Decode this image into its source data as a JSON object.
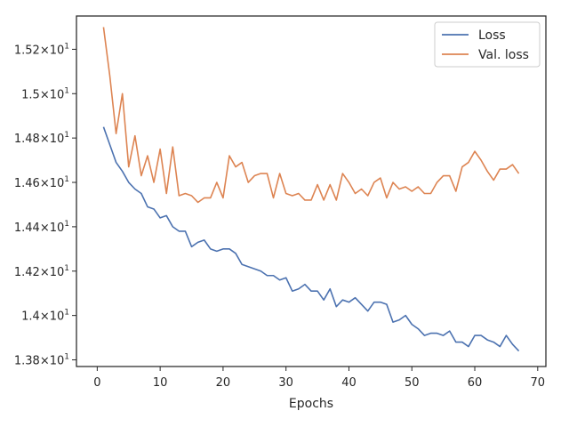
{
  "chart_data": {
    "type": "line",
    "title": "",
    "xlabel": "Epochs",
    "ylabel": "",
    "xlim": [
      -3.3,
      71.3
    ],
    "ylim": [
      13.77,
      15.35
    ],
    "grid": false,
    "legend_position": "top-right",
    "x_ticks": [
      {
        "value": 0,
        "label": "0"
      },
      {
        "value": 10,
        "label": "10"
      },
      {
        "value": 20,
        "label": "20"
      },
      {
        "value": 30,
        "label": "30"
      },
      {
        "value": 40,
        "label": "40"
      },
      {
        "value": 50,
        "label": "50"
      },
      {
        "value": 60,
        "label": "60"
      },
      {
        "value": 70,
        "label": "70"
      }
    ],
    "y_ticks": [
      {
        "value": 13.8,
        "mantissa": "1.38",
        "exponent": "1"
      },
      {
        "value": 14.0,
        "mantissa": "1.4",
        "exponent": "1"
      },
      {
        "value": 14.2,
        "mantissa": "1.42",
        "exponent": "1"
      },
      {
        "value": 14.4,
        "mantissa": "1.44",
        "exponent": "1"
      },
      {
        "value": 14.6,
        "mantissa": "1.46",
        "exponent": "1"
      },
      {
        "value": 14.8,
        "mantissa": "1.48",
        "exponent": "1"
      },
      {
        "value": 15.0,
        "mantissa": "1.5",
        "exponent": "1"
      },
      {
        "value": 15.2,
        "mantissa": "1.52",
        "exponent": "1"
      }
    ],
    "x": [
      1,
      2,
      3,
      4,
      5,
      6,
      7,
      8,
      9,
      10,
      11,
      12,
      13,
      14,
      15,
      16,
      17,
      18,
      19,
      20,
      21,
      22,
      23,
      24,
      25,
      26,
      27,
      28,
      29,
      30,
      31,
      32,
      33,
      34,
      35,
      36,
      37,
      38,
      39,
      40,
      41,
      42,
      43,
      44,
      45,
      46,
      47,
      48,
      49,
      50,
      51,
      52,
      53,
      54,
      55,
      56,
      57,
      58,
      59,
      60,
      61,
      62,
      63,
      64,
      65,
      66,
      67
    ],
    "series": [
      {
        "name": "Loss",
        "color": "#4c72b0",
        "values": [
          14.85,
          14.77,
          14.69,
          14.65,
          14.6,
          14.57,
          14.55,
          14.49,
          14.48,
          14.44,
          14.45,
          14.4,
          14.38,
          14.38,
          14.31,
          14.33,
          14.34,
          14.3,
          14.29,
          14.3,
          14.3,
          14.28,
          14.23,
          14.22,
          14.21,
          14.2,
          14.18,
          14.18,
          14.16,
          14.17,
          14.11,
          14.12,
          14.14,
          14.11,
          14.11,
          14.07,
          14.12,
          14.04,
          14.07,
          14.06,
          14.08,
          14.05,
          14.02,
          14.06,
          14.06,
          14.05,
          13.97,
          13.98,
          14.0,
          13.96,
          13.94,
          13.91,
          13.92,
          13.92,
          13.91,
          13.93,
          13.88,
          13.88,
          13.86,
          13.91,
          13.91,
          13.89,
          13.88,
          13.86,
          13.91,
          13.87,
          13.84
        ]
      },
      {
        "name": "Val. loss",
        "color": "#dd8452",
        "values": [
          15.3,
          15.08,
          14.82,
          15.0,
          14.67,
          14.81,
          14.63,
          14.72,
          14.6,
          14.75,
          14.55,
          14.76,
          14.54,
          14.55,
          14.54,
          14.51,
          14.53,
          14.53,
          14.6,
          14.53,
          14.72,
          14.67,
          14.69,
          14.6,
          14.63,
          14.64,
          14.64,
          14.53,
          14.64,
          14.55,
          14.54,
          14.55,
          14.52,
          14.52,
          14.59,
          14.52,
          14.59,
          14.52,
          14.64,
          14.6,
          14.55,
          14.57,
          14.54,
          14.6,
          14.62,
          14.53,
          14.6,
          14.57,
          14.58,
          14.56,
          14.58,
          14.55,
          14.55,
          14.6,
          14.63,
          14.63,
          14.56,
          14.67,
          14.69,
          14.74,
          14.7,
          14.65,
          14.61,
          14.66,
          14.66,
          14.68,
          14.64
        ]
      }
    ]
  }
}
